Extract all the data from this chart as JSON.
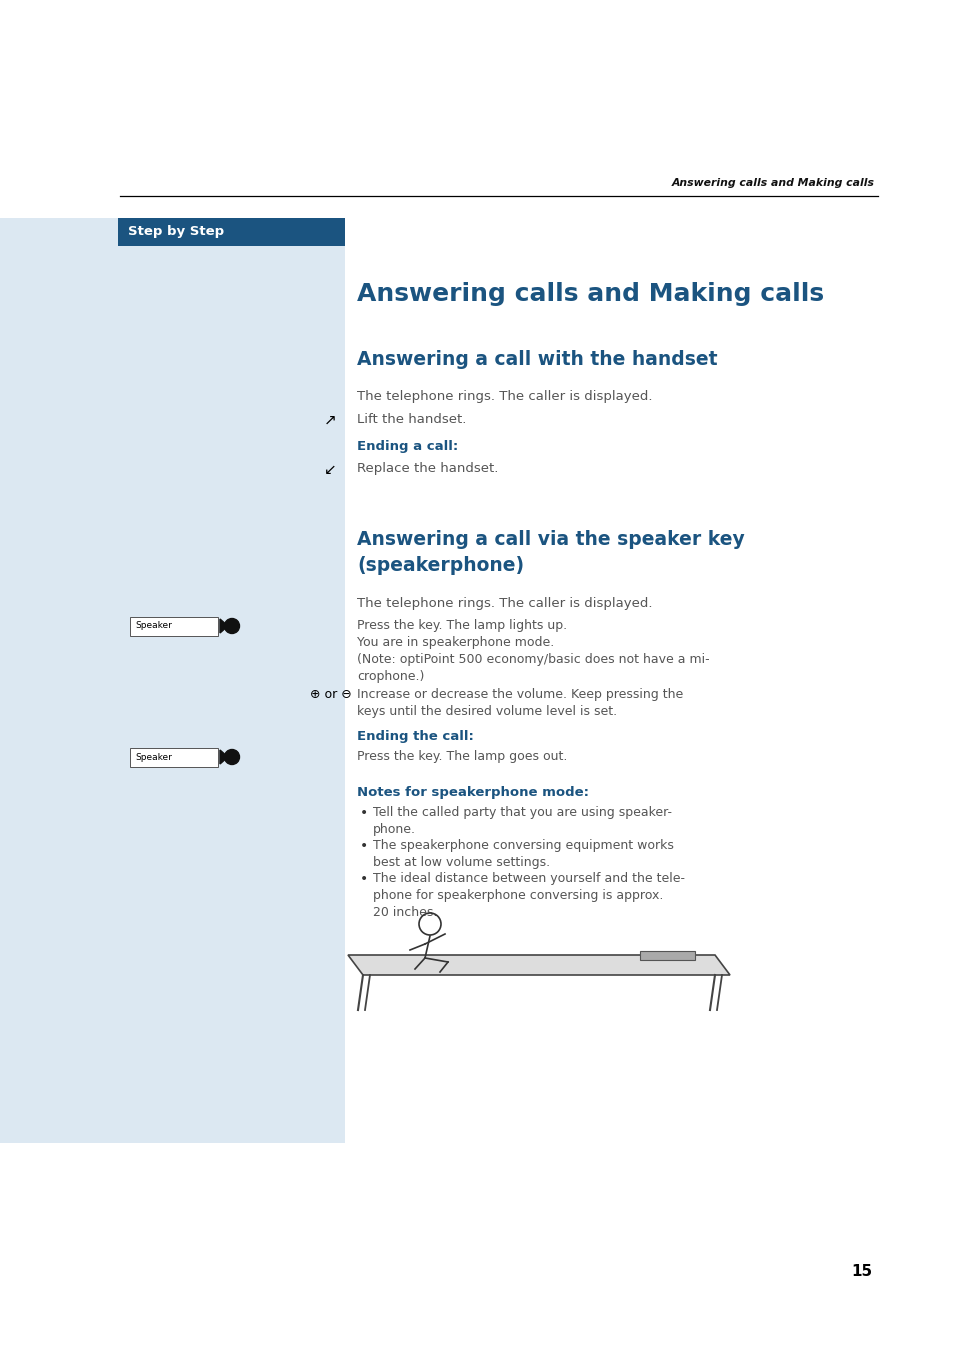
{
  "page_bg": "#ffffff",
  "sidebar_bg": "#dce8f2",
  "header_bar_bg": "#1b5480",
  "header_bar_text": "Step by Step",
  "header_bar_text_color": "#ffffff",
  "page_header_text": "Answering calls and Making calls",
  "page_number": "15",
  "title_color": "#1b5480",
  "body_color": "#555555",
  "bold_color": "#1b5480",
  "main_title": "Answering calls and Making calls",
  "section1_title": "Answering a call with the handset",
  "section1_body": "The telephone rings. The caller is displayed.",
  "section1_step1": "Lift the handset.",
  "section1_end_label": "Ending a call:",
  "section1_step2": "Replace the handset.",
  "section2_title_line1": "Answering a call via the speaker key",
  "section2_title_line2": "(speakerphone)",
  "section2_body": "The telephone rings. The caller is displayed.",
  "section2_speaker_text": "Press the key. The lamp lights up.\nYou are in speakerphone mode.\n(Note: optiPoint 500 economy/basic does not have a mi-\ncrophone.)",
  "volume_label": "⊕ or ⊖",
  "volume_text": "Increase or decrease the volume. Keep pressing the\nkeys until the desired volume level is set.",
  "section2_end_label": "Ending the call:",
  "section2_end_text": "Press the key. The lamp goes out.",
  "notes_title": "Notes for speakerphone mode:",
  "notes": [
    "Tell the called party that you are using speaker-\nphone.",
    "The speakerphone conversing equipment works\nbest at low volume settings.",
    "The ideal distance between yourself and the tele-\nphone for speakerphone conversing is approx.\n20 inches."
  ],
  "speaker_label": "Speaker"
}
